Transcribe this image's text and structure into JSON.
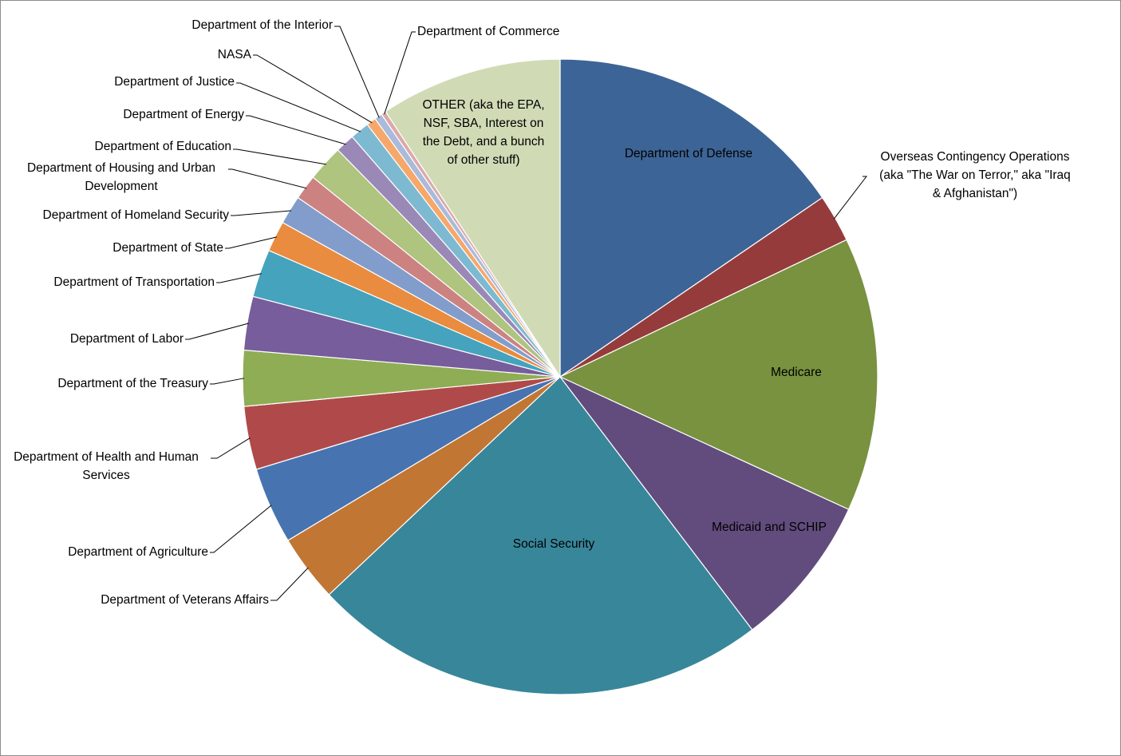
{
  "chart_data": {
    "type": "pie",
    "title": "",
    "slices": [
      {
        "label": "Department of Defense",
        "value": 15.85,
        "color": "#3d6496"
      },
      {
        "label": "Overseas Contingency Operations (aka \"The War on Terror,\" aka \"Iraq & Afghanistan\")",
        "value": 2.5,
        "color": "#963b3b"
      },
      {
        "label": "Medicare",
        "value": 14.3,
        "color": "#78923f"
      },
      {
        "label": "Medicaid and SCHIP",
        "value": 8.0,
        "color": "#624c7d"
      },
      {
        "label": "Social Security",
        "value": 23.9,
        "color": "#38869a"
      },
      {
        "label": "Department of Veterans Affairs",
        "value": 3.5,
        "color": "#c27633"
      },
      {
        "label": "Department of Agriculture",
        "value": 4.0,
        "color": "#4774b0"
      },
      {
        "label": "Department of Health and Human Services",
        "value": 3.3,
        "color": "#b04a4a"
      },
      {
        "label": "Department of the Treasury",
        "value": 2.9,
        "color": "#8fad55"
      },
      {
        "label": "Department of Labor",
        "value": 2.8,
        "color": "#775d9c"
      },
      {
        "label": "Department of Transportation",
        "value": 2.5,
        "color": "#45a3bd"
      },
      {
        "label": "Department of State",
        "value": 1.6,
        "color": "#e98c3f"
      },
      {
        "label": "Department of Homeland Security",
        "value": 1.5,
        "color": "#829dcb"
      },
      {
        "label": "Department of Housing and Urban Development",
        "value": 1.3,
        "color": "#cd8282"
      },
      {
        "label": "Department of Education",
        "value": 1.9,
        "color": "#aec47f"
      },
      {
        "label": "Department of Energy",
        "value": 1.0,
        "color": "#9a88b7"
      },
      {
        "label": "Department of Justice",
        "value": 1.0,
        "color": "#7dbad1"
      },
      {
        "label": "NASA",
        "value": 0.5,
        "color": "#f6a76a"
      },
      {
        "label": "Department of the Interior",
        "value": 0.4,
        "color": "#a9badb"
      },
      {
        "label": "Department of Commerce",
        "value": 0.25,
        "color": "#dca9a9"
      },
      {
        "label": "OTHER (aka the EPA, NSF, SBA, Interest on the Debt, and a bunch of other stuff)",
        "value": 9.5,
        "color": "#d0dbb6"
      }
    ]
  }
}
